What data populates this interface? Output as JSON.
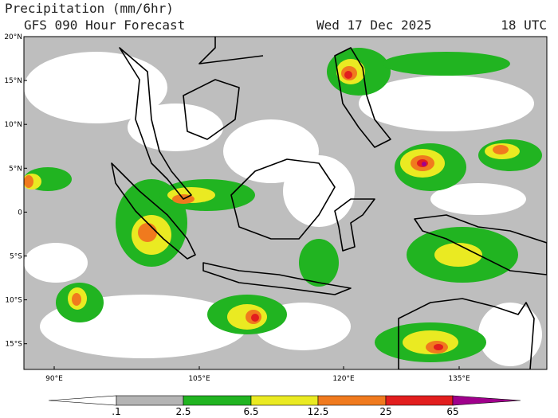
{
  "header": {
    "title": "Precipitation (mm/6hr)",
    "subtitle": "GFS 090 Hour Forecast",
    "date": "Wed 17 Dec 2025",
    "time": "18 UTC"
  },
  "map": {
    "lat_labels": [
      "20°N",
      "15°N",
      "10°N",
      "5°N",
      "0",
      "5°S",
      "10°S",
      "15°S"
    ],
    "lon_labels": [
      "90°E",
      "105°E",
      "120°E",
      "135°E"
    ]
  },
  "colorbar": {
    "labels": [
      ".1",
      "2.5",
      "6.5",
      "12.5",
      "25",
      "65"
    ],
    "colors": [
      "#ffffff",
      "#b4b4b4",
      "#21b421",
      "#eaea22",
      "#f07a1e",
      "#e21e1e",
      "#a0008c"
    ]
  }
}
